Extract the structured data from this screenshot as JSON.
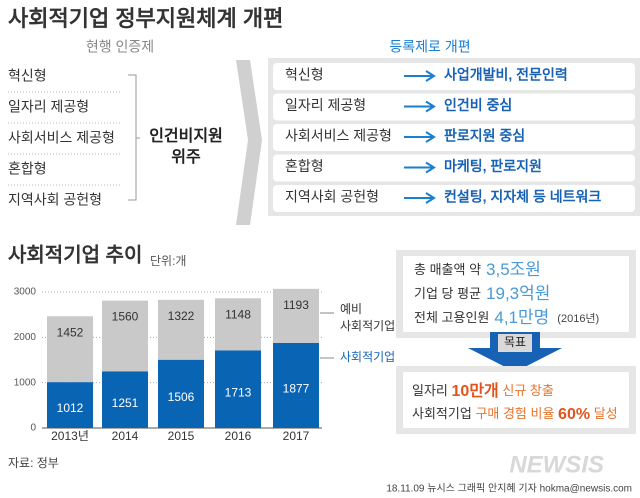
{
  "title": "사회적기업 정부지원체계 개편",
  "current": {
    "heading": "현행 인증제",
    "items": [
      "혁신형",
      "일자리 제공형",
      "사회서비스 제공형",
      "혼합형",
      "지역사회 공헌형"
    ],
    "summary": [
      "인건비지원",
      "위주"
    ]
  },
  "reform": {
    "heading": "등록제로 개편",
    "rows": [
      {
        "from": "혁신형",
        "to": "사업개발비, 전문인력"
      },
      {
        "from": "일자리 제공형",
        "to": "인건비 중심"
      },
      {
        "from": "사회서비스 제공형",
        "to": "판로지원 중심"
      },
      {
        "from": "혼합형",
        "to": "마케팅, 판로지원"
      },
      {
        "from": "지역사회 공헌형",
        "to": "컨설팅, 지자체 등 네트워크"
      }
    ]
  },
  "chart_data": {
    "type": "bar",
    "stacked": true,
    "title": "사회적기업 추이",
    "unit": "단위:개",
    "categories": [
      "2013년",
      "2014",
      "2015",
      "2016",
      "2017"
    ],
    "series": [
      {
        "name": "사회적기업",
        "color": "#0a64b4",
        "values": [
          1012,
          1251,
          1506,
          1713,
          1877
        ]
      },
      {
        "name": "예비 사회적기업",
        "color": "#c9c9c9",
        "values": [
          1452,
          1560,
          1322,
          1148,
          1193
        ]
      }
    ],
    "ylim": [
      0,
      3000
    ],
    "yticks": [
      0,
      1000,
      2000,
      3000
    ],
    "grid": true
  },
  "stats": {
    "lines": [
      {
        "label": "총 매출액 약",
        "value": "3,5조원"
      },
      {
        "label": "기업 당 평균",
        "value": "19,3억원"
      },
      {
        "label": "전체 고용인원",
        "value": "4,1만명",
        "note": "(2016년)"
      }
    ]
  },
  "goal": {
    "badge": "목표",
    "line1": {
      "lead": "일자리",
      "highlight": "10만개",
      "rest": "신규 창출"
    },
    "line2": {
      "lead": "사회적기업",
      "mid": "구매 경험 비율",
      "highlight": "60%",
      "rest": "달성"
    }
  },
  "source": "자료: 정부",
  "credit": "18.11.09 뉴시스 그래픽 안지혜 기자 hokma@newsis.com",
  "logo": "NEWSIS"
}
